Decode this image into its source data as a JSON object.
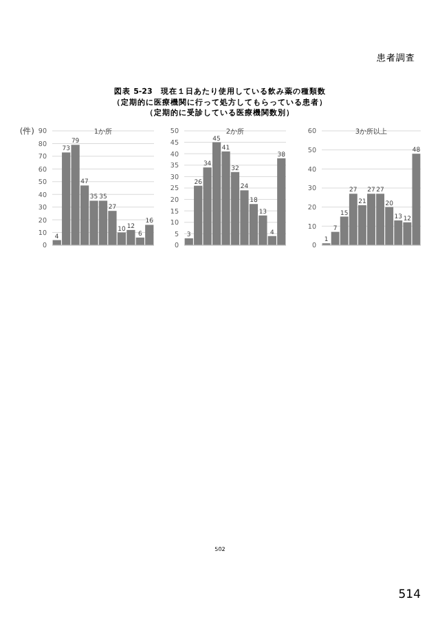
{
  "chart_data": [
    {
      "type": "other",
      "title": "図表 5-23　現在１日あたり使用している飲み薬の種類数",
      "subtitle": "（定期的に医療機関に行って処方してもらっている患者）",
      "annotations": [
        "（定期的に受診している医療機関数別）",
        "患者調査",
        "502",
        "514"
      ]
    },
    {
      "type": "bar",
      "title": "1か所",
      "ylabel": "(件)",
      "categories": [
        null,
        null,
        null,
        null,
        null,
        null,
        null,
        null,
        null,
        null,
        null
      ],
      "values": [
        4,
        73,
        79,
        47,
        35,
        35,
        27,
        10,
        12,
        6,
        16
      ],
      "color": "#7f7f7f",
      "ylim": [
        0,
        90
      ],
      "yticks": [
        0,
        10,
        20,
        30,
        40,
        50,
        60,
        70,
        80,
        90
      ],
      "grid": "y",
      "data_labels": true
    },
    {
      "type": "bar",
      "title": "2か所",
      "categories": [
        null,
        null,
        null,
        null,
        null,
        null,
        null,
        null,
        null,
        null,
        null
      ],
      "values": [
        3,
        26,
        34,
        45,
        41,
        32,
        24,
        18,
        13,
        4,
        38
      ],
      "color": "#7f7f7f",
      "ylim": [
        0,
        50
      ],
      "yticks": [
        0,
        5,
        10,
        15,
        20,
        25,
        30,
        35,
        40,
        45,
        50
      ],
      "grid": "y",
      "data_labels": true
    },
    {
      "type": "bar",
      "title": "3か所以上",
      "categories": [
        null,
        null,
        null,
        null,
        null,
        null,
        null,
        null,
        null,
        null,
        null
      ],
      "values": [
        1,
        7,
        15,
        27,
        21,
        27,
        27,
        20,
        13,
        12,
        48
      ],
      "color": "#7f7f7f",
      "ylim": [
        0,
        60
      ],
      "yticks": [
        0,
        10,
        20,
        30,
        40,
        50,
        60
      ],
      "grid": "y",
      "data_labels": true
    }
  ]
}
